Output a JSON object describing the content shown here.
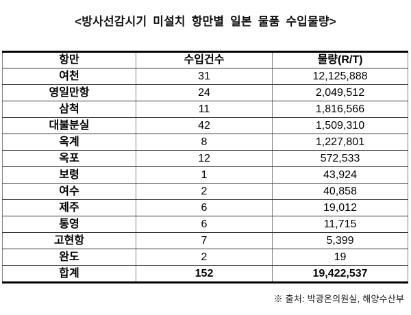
{
  "title": "<방사선감시기 미설치 항만별 일본 물품 수입물량>",
  "table": {
    "headers": [
      "항만",
      "수입건수",
      "물량(R/T)"
    ],
    "rows": [
      {
        "port": "여천",
        "count": "31",
        "volume": "12,125,888"
      },
      {
        "port": "영일만항",
        "count": "24",
        "volume": "2,049,512"
      },
      {
        "port": "삼척",
        "count": "11",
        "volume": "1,816,566"
      },
      {
        "port": "대불분실",
        "count": "42",
        "volume": "1,509,310"
      },
      {
        "port": "옥계",
        "count": "8",
        "volume": "1,227,801"
      },
      {
        "port": "옥포",
        "count": "12",
        "volume": "572,533"
      },
      {
        "port": "보령",
        "count": "1",
        "volume": "43,924"
      },
      {
        "port": "여수",
        "count": "2",
        "volume": "40,858"
      },
      {
        "port": "제주",
        "count": "6",
        "volume": "19,012"
      },
      {
        "port": "통영",
        "count": "6",
        "volume": "11,715"
      },
      {
        "port": "고현항",
        "count": "7",
        "volume": "5,399"
      },
      {
        "port": "완도",
        "count": "2",
        "volume": "19"
      }
    ],
    "total": {
      "port": "합계",
      "count": "152",
      "volume": "19,422,537"
    }
  },
  "footer": {
    "source": "※ 출처: 박광온의원실, 해양수산부"
  },
  "colors": {
    "thick_border": "#000000",
    "horizontal_rule": "#333333",
    "vertical_rule": "#808080",
    "text": "#000000",
    "background": "#ffffff"
  }
}
